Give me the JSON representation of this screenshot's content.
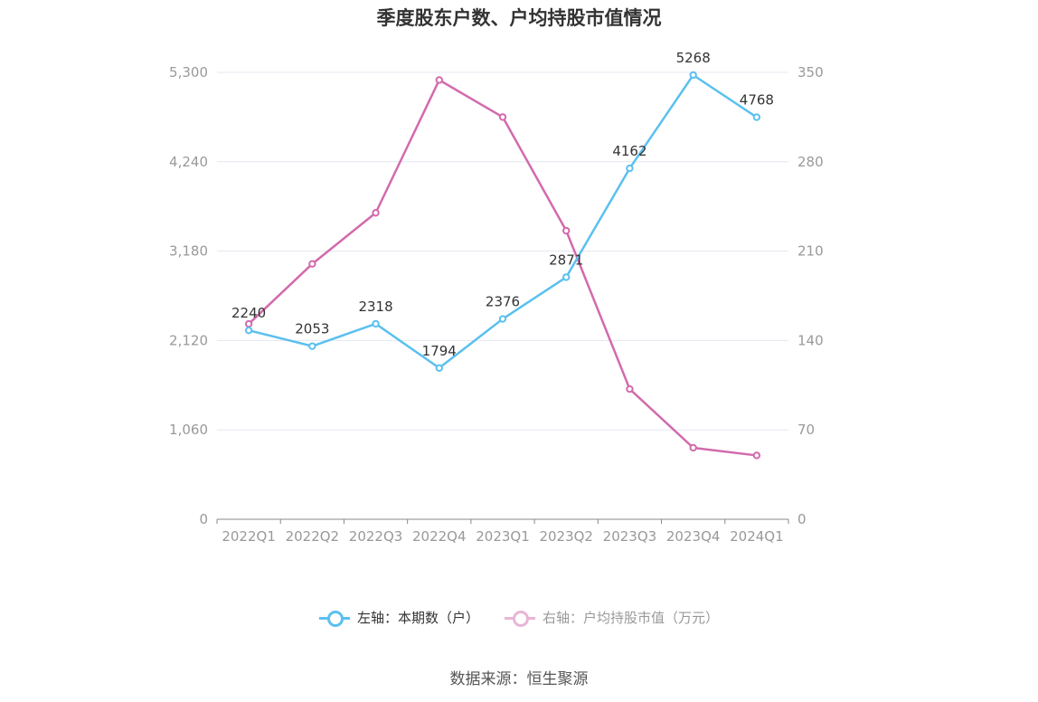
{
  "title": "季度股东户数、户均持股市值情况",
  "source": "数据来源：恒生聚源",
  "colors": {
    "left": "#5bc0ef",
    "right": "#d36aad",
    "grid": "#e4e7f0",
    "axis": "#888888"
  },
  "legend": [
    {
      "label": "左轴：本期数（户）",
      "color": "#5bc0ef",
      "text_color": "#333333"
    },
    {
      "label": "右轴：户均持股市值（万元）",
      "color": "#e8b5d6",
      "text_color": "#999999"
    }
  ],
  "chart_data": {
    "type": "line",
    "categories": [
      "2022Q1",
      "2022Q2",
      "2022Q3",
      "2022Q4",
      "2023Q1",
      "2023Q2",
      "2023Q3",
      "2023Q4",
      "2024Q1"
    ],
    "left_axis": {
      "ticks": [
        "0",
        "1,060",
        "2,120",
        "3,180",
        "4,240",
        "5,300"
      ],
      "ylim": [
        0,
        5300
      ]
    },
    "right_axis": {
      "ticks": [
        "0",
        "70",
        "140",
        "210",
        "280",
        "350"
      ],
      "ylim": [
        0,
        350
      ]
    },
    "series": [
      {
        "name": "左轴：本期数（户）",
        "axis": "left",
        "color": "#5bc0ef",
        "values": [
          2240,
          2053,
          2318,
          1794,
          2376,
          2871,
          4162,
          5268,
          4768
        ],
        "labels": [
          "2240",
          "2053",
          "2318",
          "1794",
          "2376",
          "2871",
          "4162",
          "5268",
          "4768"
        ]
      },
      {
        "name": "右轴：户均持股市值（万元）",
        "axis": "right",
        "color": "#d36aad",
        "values": [
          153,
          200,
          240,
          344,
          315,
          226,
          102,
          56,
          50
        ]
      }
    ],
    "grid": true,
    "legend_position": "bottom"
  }
}
